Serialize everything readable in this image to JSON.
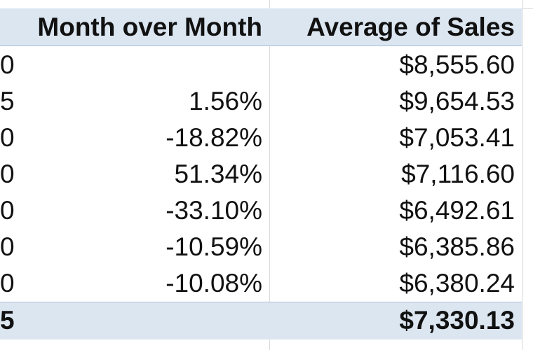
{
  "sheet": {
    "headers": {
      "month_over_month": "Month over Month",
      "average_of_sales": "Average of Sales"
    },
    "rows": [
      {
        "left_cut": "0",
        "mom": "",
        "avg": "$8,555.60"
      },
      {
        "left_cut": "5",
        "mom": "1.56%",
        "avg": "$9,654.53"
      },
      {
        "left_cut": "0",
        "mom": "-18.82%",
        "avg": "$7,053.41"
      },
      {
        "left_cut": "0",
        "mom": "51.34%",
        "avg": "$7,116.60"
      },
      {
        "left_cut": "0",
        "mom": "-33.10%",
        "avg": "$6,492.61"
      },
      {
        "left_cut": "0",
        "mom": "-10.59%",
        "avg": "$6,385.86"
      },
      {
        "left_cut": "0",
        "mom": "-10.08%",
        "avg": "$6,380.24"
      }
    ],
    "total": {
      "left_cut": "5",
      "mom": "",
      "avg": "$7,330.13"
    }
  }
}
